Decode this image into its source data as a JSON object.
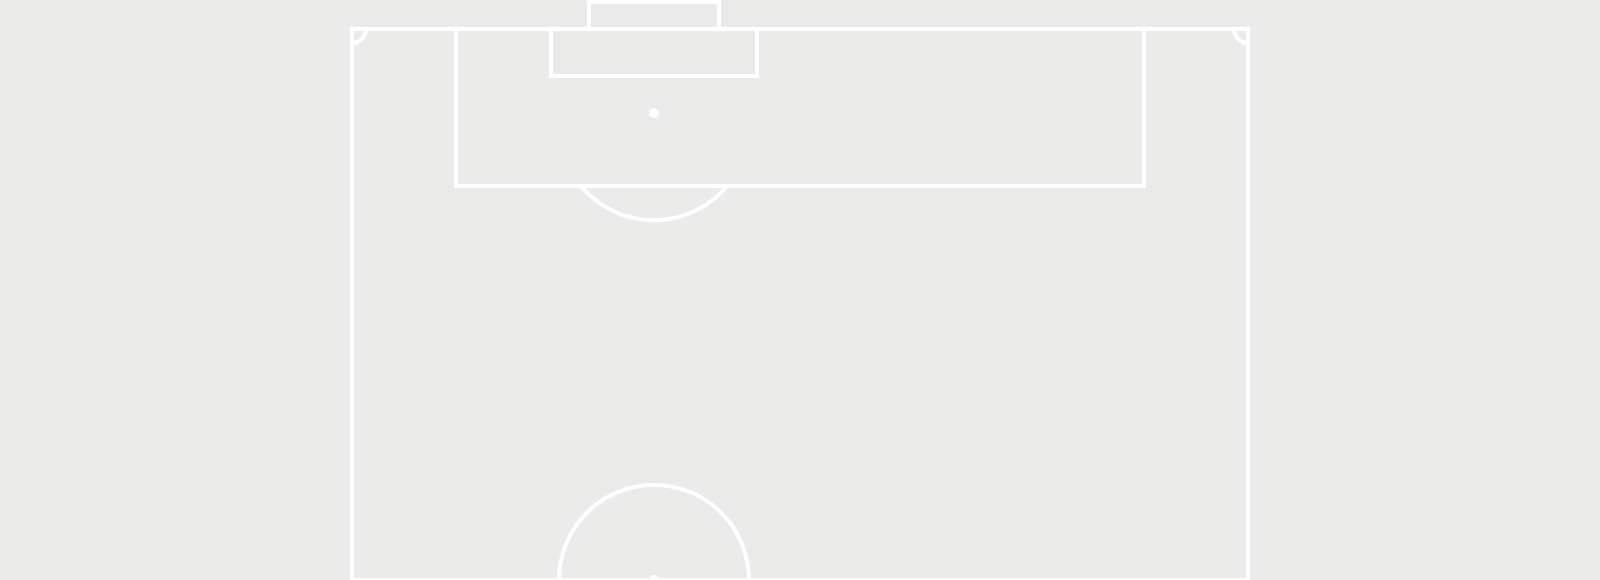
{
  "pitch": {
    "view": "half-pitch",
    "orientation": "goal-at-top",
    "colors": {
      "grass": "#EBECEA",
      "lines": "#FFFFFF"
    }
  }
}
